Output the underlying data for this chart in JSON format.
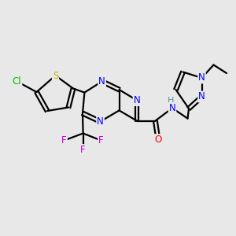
{
  "bg_color": "#e8e8e8",
  "bond_color": "#000000",
  "bond_width": 1.6,
  "atom_colors": {
    "N": "#0000ff",
    "S": "#ccaa00",
    "Cl": "#00bb00",
    "F": "#cc00cc",
    "O": "#ff0000",
    "H": "#559999",
    "C": "#000000"
  },
  "font_size": 8.5
}
